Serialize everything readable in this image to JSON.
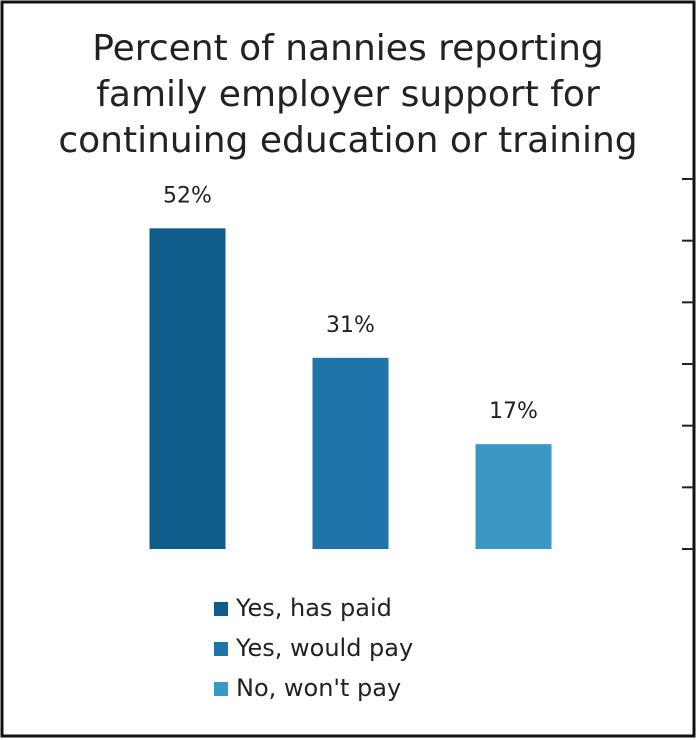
{
  "chart_data": {
    "type": "bar",
    "title": [
      "Percent of nannies reporting",
      "family employer support for",
      "continuing education or training"
    ],
    "categories": [
      "Yes, has paid",
      "Yes, would pay",
      "No, won't pay"
    ],
    "values": [
      52,
      31,
      17
    ],
    "value_labels": [
      "52%",
      "31%",
      "17%"
    ],
    "colors": [
      "#0f5b8c",
      "#1f74aa",
      "#3b97c5"
    ],
    "ylim": [
      0,
      60
    ],
    "yticks": [
      0,
      10,
      20,
      30,
      40,
      50,
      60
    ],
    "legend": "bottom"
  }
}
